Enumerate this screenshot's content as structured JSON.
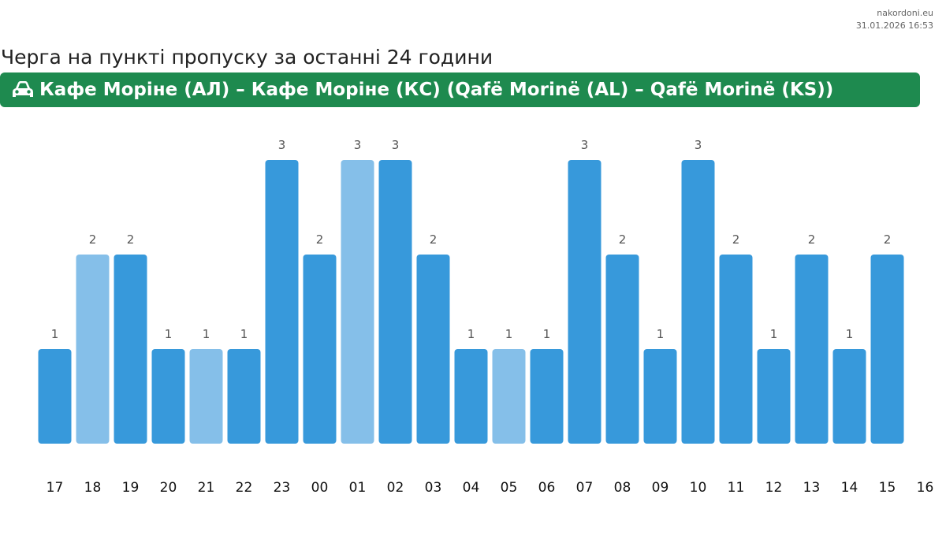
{
  "source": {
    "site": "nakordoni.eu",
    "timestamp": "31.01.2026 16:53"
  },
  "page_title": "Черга на пункті пропуску за останні 24 години",
  "banner": {
    "label": "Кафе Моріне (АЛ) – Кафе Моріне (КС) (Qafë Morinë (AL) – Qafë Morinë (KS))",
    "icon": "car-icon",
    "color": "#1e8a4f"
  },
  "colors": {
    "bar": "#3799db",
    "bar_light": "#85bfe9"
  },
  "chart_data": {
    "type": "bar",
    "categories": [
      "17",
      "18",
      "19",
      "20",
      "21",
      "22",
      "23",
      "00",
      "01",
      "02",
      "03",
      "04",
      "05",
      "06",
      "07",
      "08",
      "09",
      "10",
      "11",
      "12",
      "13",
      "14",
      "15"
    ],
    "values": [
      1,
      2,
      2,
      1,
      1,
      1,
      3,
      2,
      3,
      3,
      2,
      1,
      1,
      1,
      3,
      2,
      1,
      3,
      2,
      1,
      2,
      1,
      2
    ],
    "highlighted": [
      false,
      true,
      false,
      false,
      true,
      false,
      false,
      false,
      true,
      false,
      false,
      false,
      true,
      false,
      false,
      false,
      false,
      false,
      false,
      false,
      false,
      false,
      false
    ],
    "x_ticks": [
      "17",
      "18",
      "19",
      "20",
      "21",
      "22",
      "23",
      "00",
      "01",
      "02",
      "03",
      "04",
      "05",
      "06",
      "07",
      "08",
      "09",
      "10",
      "11",
      "12",
      "13",
      "14",
      "15",
      "16"
    ],
    "ylim": [
      0,
      3
    ],
    "grid": false,
    "title": "",
    "xlabel": "",
    "ylabel": ""
  }
}
